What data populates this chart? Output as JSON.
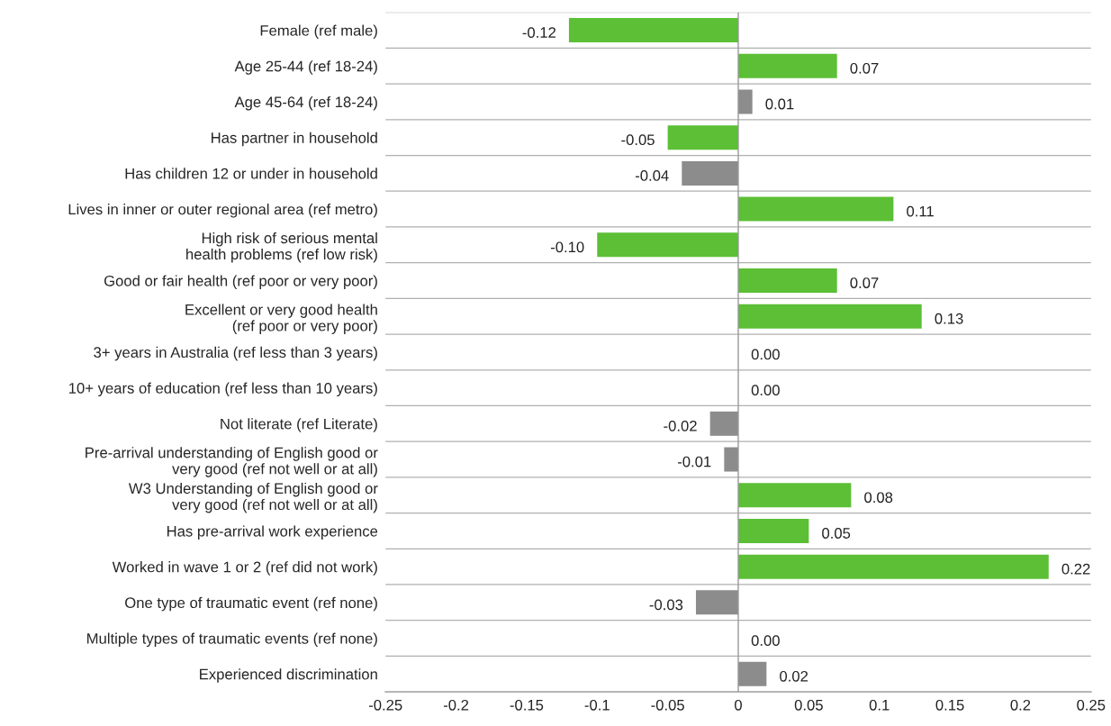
{
  "chart_data": {
    "type": "bar",
    "orientation": "horizontal",
    "categories": [
      "Female (ref male)",
      "Age 25-44 (ref 18-24)",
      "Age 45-64 (ref 18-24)",
      "Has partner in household",
      "Has children 12 or under in household",
      "Lives in inner or outer regional area (ref metro)",
      "High risk of serious mental\nhealth problems (ref low risk)",
      "Good or fair health (ref poor or very poor)",
      "Excellent or very good health\n(ref poor or very poor)",
      "3+ years in Australia (ref less than 3 years)",
      "10+ years of education (ref less than 10 years)",
      "Not literate (ref Literate)",
      "Pre-arrival understanding of English good or\nvery good (ref not well or at all)",
      "W3 Understanding of English good or\nvery good (ref not well or at all)",
      "Has pre-arrival work experience",
      "Worked in wave 1 or 2 (ref did not work)",
      "One type of traumatic event (ref none)",
      "Multiple types of traumatic events (ref none)",
      "Experienced discrimination"
    ],
    "values": [
      -0.12,
      0.07,
      0.01,
      -0.05,
      -0.04,
      0.11,
      -0.1,
      0.07,
      0.13,
      0.0,
      0.0,
      -0.02,
      -0.01,
      0.08,
      0.05,
      0.22,
      -0.03,
      0.0,
      0.02
    ],
    "value_labels": [
      "-0.12",
      "0.07",
      "0.01",
      "-0.05",
      "-0.04",
      "0.11",
      "-0.10",
      "0.07",
      "0.13",
      "0.00",
      "0.00",
      "-0.02",
      "-0.01",
      "0.08",
      "0.05",
      "0.22",
      "-0.03",
      "0.00",
      "0.02"
    ],
    "colors": [
      "#5cbf36",
      "#5cbf36",
      "#8c8c8c",
      "#5cbf36",
      "#8c8c8c",
      "#5cbf36",
      "#5cbf36",
      "#5cbf36",
      "#5cbf36",
      null,
      null,
      "#8c8c8c",
      "#8c8c8c",
      "#5cbf36",
      "#5cbf36",
      "#5cbf36",
      "#8c8c8c",
      null,
      "#8c8c8c"
    ],
    "xlim": [
      -0.25,
      0.25
    ],
    "xticks": [
      -0.25,
      -0.2,
      -0.15,
      -0.1,
      -0.05,
      0,
      0.05,
      0.1,
      0.15,
      0.2,
      0.25
    ],
    "ref_lines": [
      {
        "axis": "x",
        "value": 0,
        "color": "#999999"
      }
    ],
    "grid": "y",
    "legend": false
  }
}
